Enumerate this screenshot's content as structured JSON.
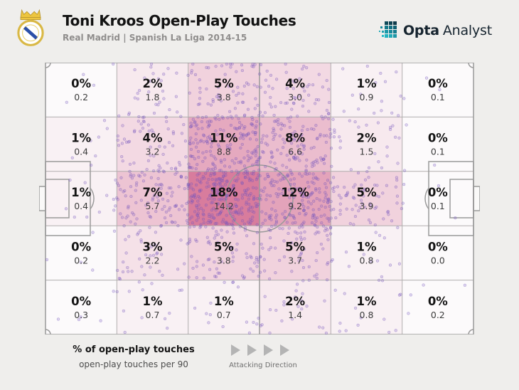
{
  "header": {
    "title": "Toni Kroos Open-Play Touches",
    "subtitle": "Real Madrid | Spanish La Liga 2014-15"
  },
  "brand": {
    "word_bold": "Opta",
    "word_regular": "Analyst"
  },
  "legend": {
    "pct_label": "% of open-play touches",
    "per90_label": "open-play touches per 90",
    "direction_label": "Attacking Direction"
  },
  "colors": {
    "zone_low": "#fcfafb",
    "zone_high": "#d87c9d",
    "dot_purple": "#7c5cc4",
    "pitch_line": "#9a9a9a",
    "grid_line": "#b1aeae",
    "brand_teal": "#1b96a6"
  },
  "chart_data": {
    "type": "heatmap",
    "title": "Toni Kroos Open-Play Touches",
    "subtitle": "Real Madrid | Spanish La Liga 2014-15",
    "value_labels": {
      "primary": "% of open-play touches",
      "secondary": "open-play touches per 90"
    },
    "attacking_direction": "left-to-right",
    "grid": {
      "rows": 5,
      "cols": 6
    },
    "zones_pct": [
      [
        0,
        2,
        5,
        4,
        1,
        0
      ],
      [
        1,
        4,
        11,
        8,
        2,
        0
      ],
      [
        1,
        7,
        18,
        12,
        5,
        0
      ],
      [
        0,
        3,
        5,
        5,
        1,
        0
      ],
      [
        0,
        1,
        1,
        2,
        1,
        0
      ]
    ],
    "zones_per90": [
      [
        0.2,
        1.8,
        3.8,
        3.0,
        0.9,
        0.1
      ],
      [
        0.4,
        3.2,
        8.8,
        6.6,
        1.5,
        0.1
      ],
      [
        0.4,
        5.7,
        14.2,
        9.2,
        3.9,
        0.1
      ],
      [
        0.2,
        2.2,
        3.8,
        3.7,
        0.8,
        0.0
      ],
      [
        0.3,
        0.7,
        0.7,
        1.4,
        0.8,
        0.2
      ]
    ],
    "pct_max": 18
  }
}
